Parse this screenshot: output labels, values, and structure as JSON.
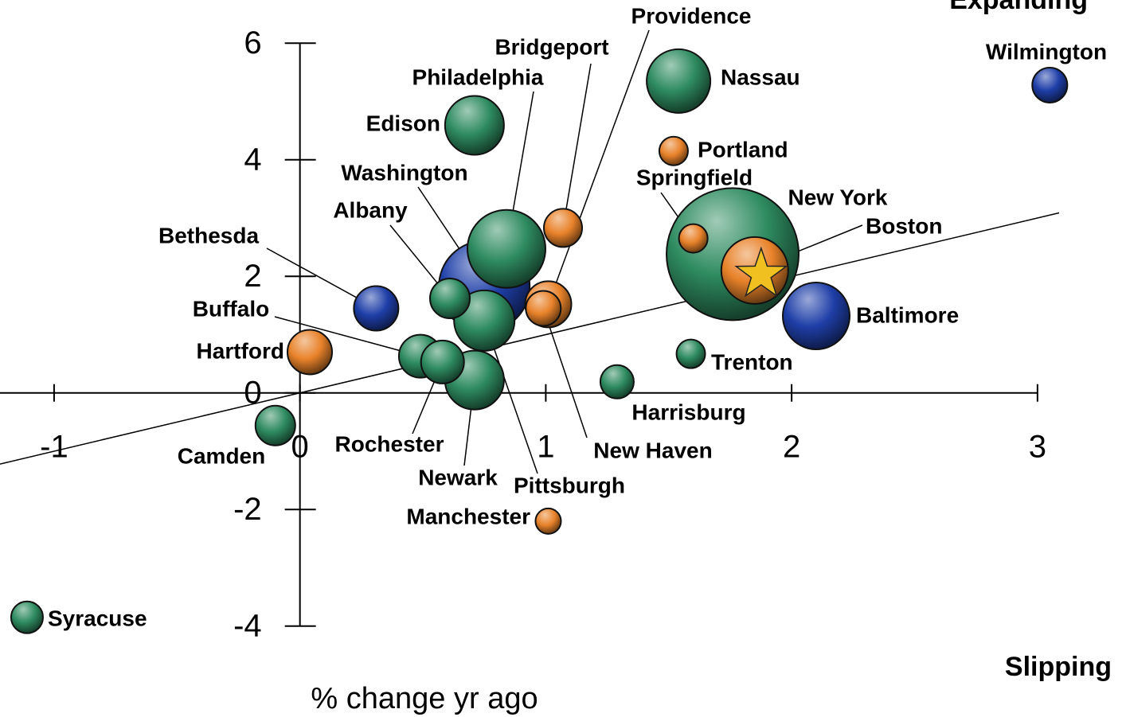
{
  "chart_data": {
    "type": "scatter",
    "corner_top": "Expanding",
    "corner_bottom": "Slipping",
    "x_label": "% change yr ago",
    "xlim": [
      -1.22,
      3.36
    ],
    "ylim": [
      -5.56,
      6.74
    ],
    "xticks": [
      -1,
      0,
      1,
      2,
      3
    ],
    "yticks": [
      6,
      4,
      2,
      0,
      -2,
      -4
    ],
    "trend_line": {
      "slope": 1.0,
      "intercept": 0
    },
    "labels": [
      "Wilmington",
      "Nassau",
      "Portland",
      "Edison",
      "Bridgeport",
      "Philadelphia",
      "Washington",
      "Albany",
      "Bethesda",
      "Providence",
      "New Haven",
      "Pittsburgh",
      "Hartford",
      "Buffalo",
      "Rochester",
      "Newark",
      "Harrisburg",
      "Trenton",
      "Springfield",
      "New York",
      "Boston",
      "Baltimore",
      "Camden",
      "Manchester",
      "Syracuse"
    ],
    "x": [
      3.05,
      1.54,
      1.52,
      0.71,
      1.07,
      0.84,
      0.75,
      0.61,
      0.31,
      1.01,
      0.99,
      0.75,
      0.04,
      0.49,
      0.58,
      0.71,
      1.29,
      1.59,
      1.6,
      1.76,
      1.85,
      2.1,
      -0.1,
      1.01,
      -1.11
    ],
    "y": [
      5.28,
      5.35,
      4.15,
      4.59,
      2.83,
      2.47,
      1.83,
      1.62,
      1.45,
      1.52,
      1.45,
      1.24,
      0.7,
      0.63,
      0.53,
      0.22,
      0.19,
      0.67,
      2.65,
      2.38,
      2.1,
      1.32,
      -0.56,
      -2.2,
      -3.85
    ],
    "sizes": [
      22,
      40,
      18,
      37,
      24,
      49,
      57,
      25,
      28,
      29,
      22,
      38,
      28,
      27,
      27,
      37,
      21,
      18,
      18,
      83,
      42,
      42,
      25,
      16,
      20
    ],
    "colors": [
      "#1f3fa8",
      "#2e8b60",
      "#e8822a",
      "#2e8b60",
      "#e8822a",
      "#2e8b60",
      "#1f3fa8",
      "#2e8b60",
      "#1f3fa8",
      "#e8822a",
      "#e8822a",
      "#2e8b60",
      "#e8822a",
      "#2e8b60",
      "#2e8b60",
      "#2e8b60",
      "#2e8b60",
      "#2e8b60",
      "#e8822a",
      "#2e8b60",
      "#e8822a",
      "#1f3fa8",
      "#2e8b60",
      "#e8822a",
      "#2e8b60"
    ]
  }
}
